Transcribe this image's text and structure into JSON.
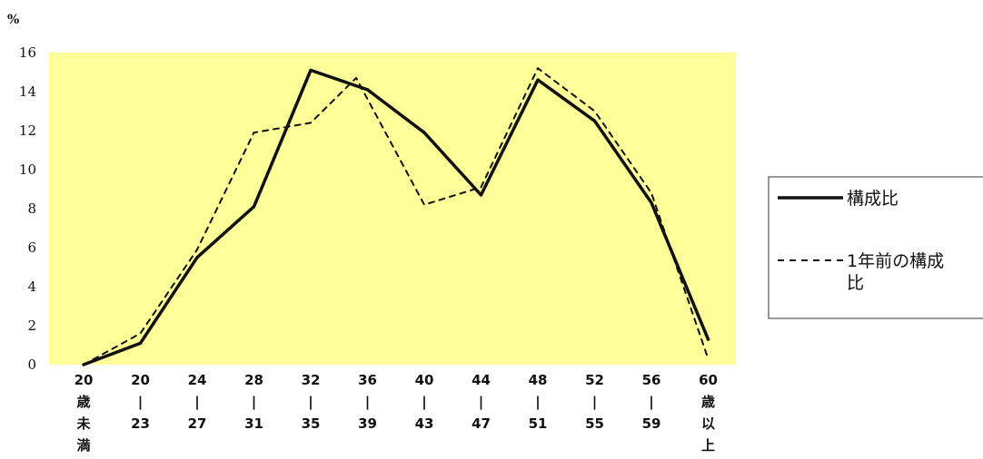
{
  "chart_data": {
    "type": "line",
    "ylabel": "%",
    "ylim": [
      0,
      16
    ],
    "yticks": [
      "0",
      "2",
      "4",
      "6",
      "8",
      "10",
      "12",
      "14",
      "16"
    ],
    "grid": false,
    "legend_position": "right",
    "plot_background": "#ffff99",
    "categories": [
      [
        "20",
        "歳",
        "未",
        "満"
      ],
      [
        "20",
        "|",
        "23"
      ],
      [
        "24",
        "|",
        "27"
      ],
      [
        "28",
        "|",
        "31"
      ],
      [
        "32",
        "|",
        "35"
      ],
      [
        "36",
        "|",
        "39"
      ],
      [
        "40",
        "|",
        "43"
      ],
      [
        "44",
        "|",
        "47"
      ],
      [
        "48",
        "|",
        "51"
      ],
      [
        "52",
        "|",
        "55"
      ],
      [
        "56",
        "|",
        "59"
      ],
      [
        "60",
        "歳",
        "以",
        "上"
      ]
    ],
    "series": [
      {
        "name": "構成比",
        "style": "solid",
        "color": "#111111",
        "points": [
          [
            0,
            0
          ],
          [
            1,
            1.1
          ],
          [
            2,
            5.5
          ],
          [
            3,
            8.1
          ],
          [
            4,
            15.1
          ],
          [
            5,
            14.1
          ],
          [
            6,
            11.9
          ],
          [
            7,
            8.7
          ],
          [
            8,
            14.6
          ],
          [
            9,
            12.5
          ],
          [
            10,
            8.3
          ],
          [
            11,
            1.3
          ]
        ]
      },
      {
        "name": "1年前の構成比",
        "style": "dashed",
        "color": "#111111",
        "points": [
          [
            0,
            0
          ],
          [
            1,
            1.6
          ],
          [
            2,
            5.9
          ],
          [
            3,
            11.9
          ],
          [
            4,
            12.4
          ],
          [
            4.8,
            14.7
          ],
          [
            6,
            8.2
          ],
          [
            7,
            9.1
          ],
          [
            8,
            15.2
          ],
          [
            9,
            13.0
          ],
          [
            10,
            8.8
          ],
          [
            11,
            0.3
          ]
        ]
      }
    ]
  }
}
